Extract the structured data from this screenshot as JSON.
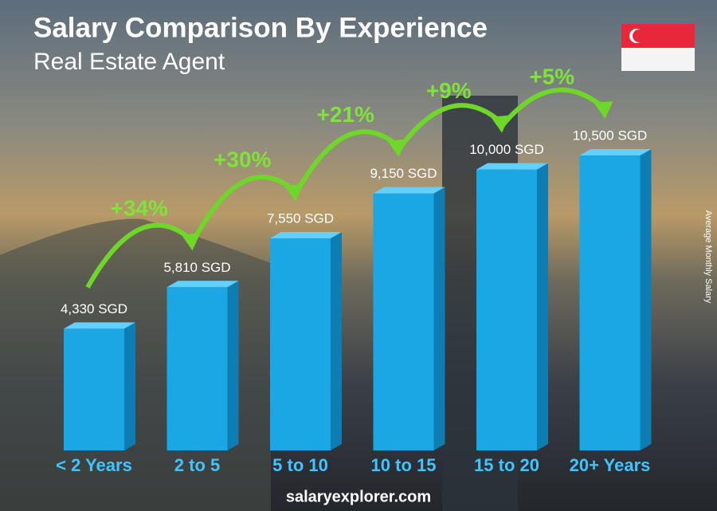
{
  "chart_data": {
    "type": "bar",
    "title": "Salary Comparison By Experience",
    "subtitle": "Real Estate Agent",
    "y_axis_label": "Average Monthly Salary",
    "categories": [
      "< 2 Years",
      "2 to 5",
      "5 to 10",
      "10 to 15",
      "15 to 20",
      "20+ Years"
    ],
    "values": [
      4330,
      5810,
      7550,
      9150,
      10000,
      10500
    ],
    "value_labels": [
      "4,330 SGD",
      "5,810 SGD",
      "7,550 SGD",
      "9,150 SGD",
      "10,000 SGD",
      "10,500 SGD"
    ],
    "changes": [
      "+34%",
      "+30%",
      "+21%",
      "+9%",
      "+5%"
    ],
    "color": "#1ba6e4"
  },
  "footer": "salaryexplorer.com"
}
